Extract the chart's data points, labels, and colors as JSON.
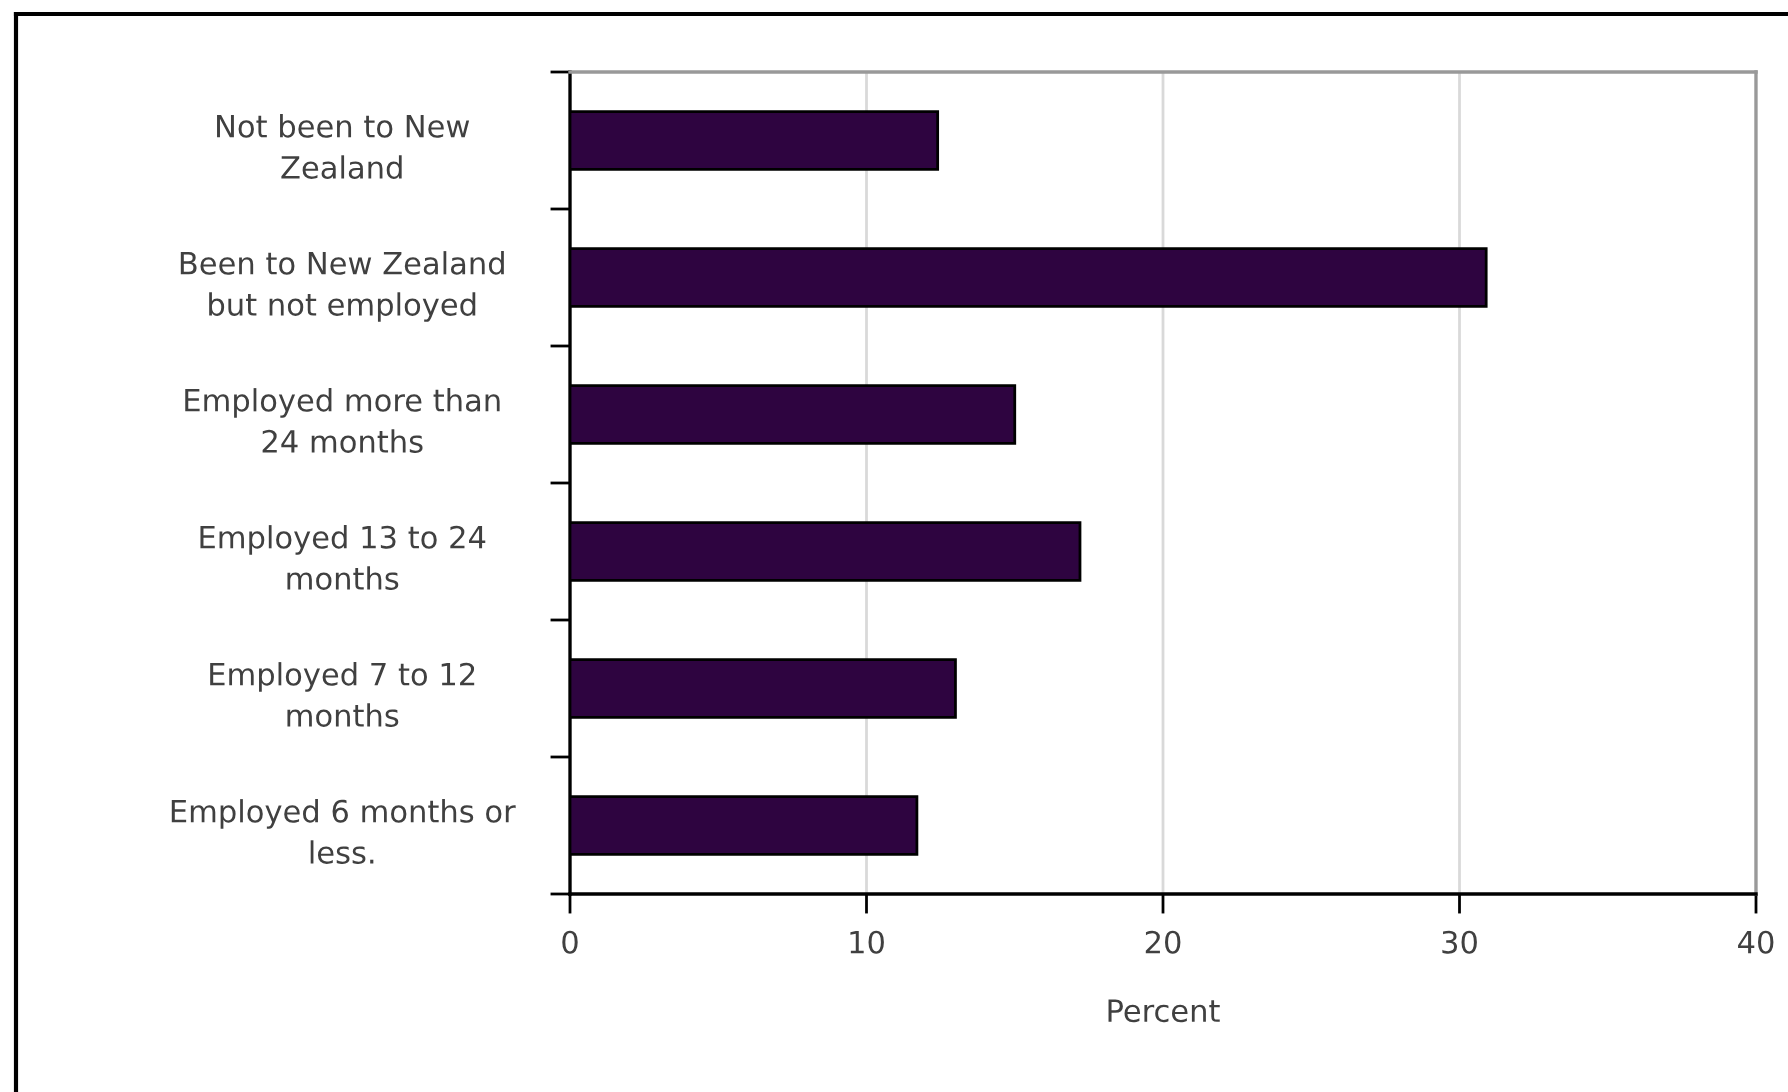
{
  "chart_data": {
    "type": "bar",
    "orientation": "horizontal",
    "categories": [
      "Not been to New Zealand",
      "Been to New Zealand but not employed",
      "Employed more than 24 months",
      "Employed 13 to 24 months",
      "Employed 7 to 12 months",
      "Employed 6 months or less."
    ],
    "values": [
      12.4,
      30.9,
      15.0,
      17.2,
      13.0,
      11.7
    ],
    "color": "#2e0440",
    "xlabel": "Percent",
    "xlim": [
      0,
      40
    ],
    "xticks": [
      0,
      10,
      20,
      30,
      40
    ],
    "grid": "x"
  }
}
